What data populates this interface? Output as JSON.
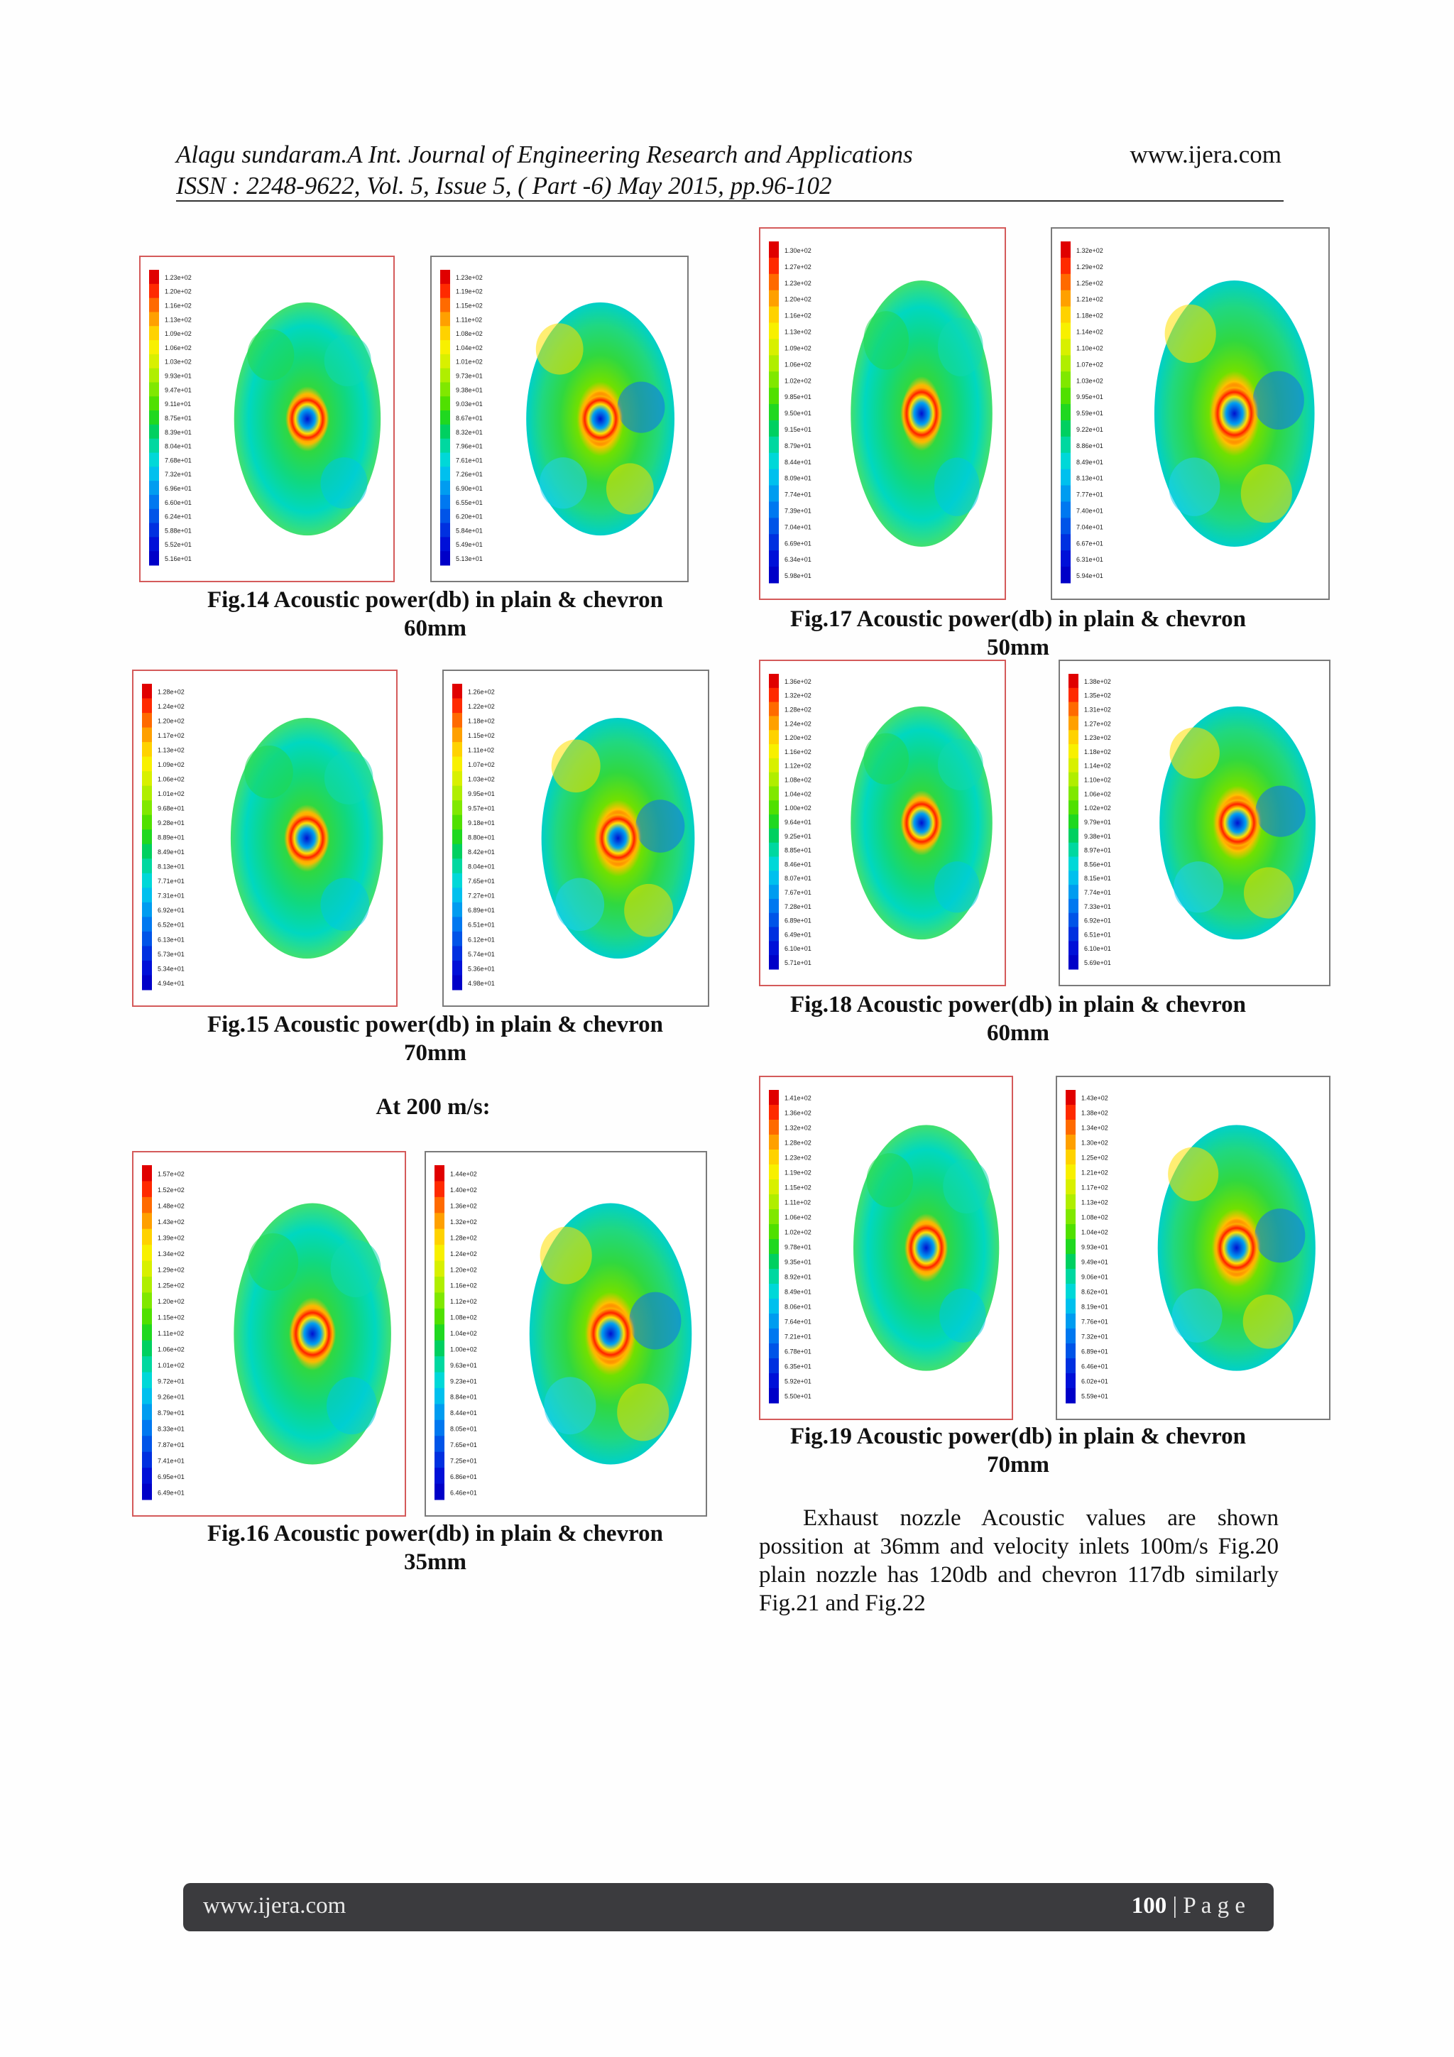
{
  "header": {
    "line1": "Alagu sundaram.A Int. Journal of Engineering Research and Applications",
    "site": "www.ijera.com",
    "line2": "ISSN : 2248-9622, Vol. 5, Issue 5, ( Part -6) May 2015, pp.96-102"
  },
  "figures": {
    "fig14": {
      "caption1": "Fig.14 Acoustic power(db) in plain & chevron",
      "caption2": "60mm",
      "left_scale": [
        "1.23e+02",
        "1.20e+02",
        "1.16e+02",
        "1.13e+02",
        "1.09e+02",
        "1.06e+02",
        "1.03e+02",
        "9.93e+01",
        "9.47e+01",
        "9.11e+01",
        "8.75e+01",
        "8.39e+01",
        "8.04e+01",
        "7.68e+01",
        "7.32e+01",
        "6.96e+01",
        "6.60e+01",
        "6.24e+01",
        "5.88e+01",
        "5.52e+01",
        "5.16e+01"
      ],
      "right_scale": [
        "1.23e+02",
        "1.19e+02",
        "1.15e+02",
        "1.11e+02",
        "1.08e+02",
        "1.04e+02",
        "1.01e+02",
        "9.73e+01",
        "9.38e+01",
        "9.03e+01",
        "8.67e+01",
        "8.32e+01",
        "7.96e+01",
        "7.61e+01",
        "7.26e+01",
        "6.90e+01",
        "6.55e+01",
        "6.20e+01",
        "5.84e+01",
        "5.49e+01",
        "5.13e+01"
      ]
    },
    "fig15": {
      "caption1": "Fig.15 Acoustic power(db) in plain & chevron",
      "caption2": "70mm",
      "left_scale": [
        "1.28e+02",
        "1.24e+02",
        "1.20e+02",
        "1.17e+02",
        "1.13e+02",
        "1.09e+02",
        "1.06e+02",
        "1.01e+02",
        "9.68e+01",
        "9.28e+01",
        "8.89e+01",
        "8.49e+01",
        "8.13e+01",
        "7.71e+01",
        "7.31e+01",
        "6.92e+01",
        "6.52e+01",
        "6.13e+01",
        "5.73e+01",
        "5.34e+01",
        "4.94e+01"
      ],
      "right_scale": [
        "1.26e+02",
        "1.22e+02",
        "1.18e+02",
        "1.15e+02",
        "1.11e+02",
        "1.07e+02",
        "1.03e+02",
        "9.95e+01",
        "9.57e+01",
        "9.18e+01",
        "8.80e+01",
        "8.42e+01",
        "8.04e+01",
        "7.65e+01",
        "7.27e+01",
        "6.89e+01",
        "6.51e+01",
        "6.12e+01",
        "5.74e+01",
        "5.36e+01",
        "4.98e+01"
      ]
    },
    "subhead": "At 200 m/s:",
    "fig16": {
      "caption1": "Fig.16 Acoustic power(db) in plain & chevron",
      "caption2": "35mm",
      "left_scale": [
        "1.57e+02",
        "1.52e+02",
        "1.48e+02",
        "1.43e+02",
        "1.39e+02",
        "1.34e+02",
        "1.29e+02",
        "1.25e+02",
        "1.20e+02",
        "1.15e+02",
        "1.11e+02",
        "1.06e+02",
        "1.01e+02",
        "9.72e+01",
        "9.26e+01",
        "8.79e+01",
        "8.33e+01",
        "7.87e+01",
        "7.41e+01",
        "6.95e+01",
        "6.49e+01"
      ],
      "right_scale": [
        "1.44e+02",
        "1.40e+02",
        "1.36e+02",
        "1.32e+02",
        "1.28e+02",
        "1.24e+02",
        "1.20e+02",
        "1.16e+02",
        "1.12e+02",
        "1.08e+02",
        "1.04e+02",
        "1.00e+02",
        "9.63e+01",
        "9.23e+01",
        "8.84e+01",
        "8.44e+01",
        "8.05e+01",
        "7.65e+01",
        "7.25e+01",
        "6.86e+01",
        "6.46e+01"
      ]
    },
    "fig17": {
      "caption1": "Fig.17 Acoustic power(db) in plain & chevron",
      "caption2": "50mm",
      "left_scale": [
        "1.30e+02",
        "1.27e+02",
        "1.23e+02",
        "1.20e+02",
        "1.16e+02",
        "1.13e+02",
        "1.09e+02",
        "1.06e+02",
        "1.02e+02",
        "9.85e+01",
        "9.50e+01",
        "9.15e+01",
        "8.79e+01",
        "8.44e+01",
        "8.09e+01",
        "7.74e+01",
        "7.39e+01",
        "7.04e+01",
        "6.69e+01",
        "6.34e+01",
        "5.98e+01"
      ],
      "right_scale": [
        "1.32e+02",
        "1.29e+02",
        "1.25e+02",
        "1.21e+02",
        "1.18e+02",
        "1.14e+02",
        "1.10e+02",
        "1.07e+02",
        "1.03e+02",
        "9.95e+01",
        "9.59e+01",
        "9.22e+01",
        "8.86e+01",
        "8.49e+01",
        "8.13e+01",
        "7.77e+01",
        "7.40e+01",
        "7.04e+01",
        "6.67e+01",
        "6.31e+01",
        "5.94e+01"
      ]
    },
    "fig18": {
      "caption1": "Fig.18 Acoustic power(db) in plain & chevron",
      "caption2": "60mm",
      "left_scale": [
        "1.36e+02",
        "1.32e+02",
        "1.28e+02",
        "1.24e+02",
        "1.20e+02",
        "1.16e+02",
        "1.12e+02",
        "1.08e+02",
        "1.04e+02",
        "1.00e+02",
        "9.64e+01",
        "9.25e+01",
        "8.85e+01",
        "8.46e+01",
        "8.07e+01",
        "7.67e+01",
        "7.28e+01",
        "6.89e+01",
        "6.49e+01",
        "6.10e+01",
        "5.71e+01"
      ],
      "right_scale": [
        "1.38e+02",
        "1.35e+02",
        "1.31e+02",
        "1.27e+02",
        "1.23e+02",
        "1.18e+02",
        "1.14e+02",
        "1.10e+02",
        "1.06e+02",
        "1.02e+02",
        "9.79e+01",
        "9.38e+01",
        "8.97e+01",
        "8.56e+01",
        "8.15e+01",
        "7.74e+01",
        "7.33e+01",
        "6.92e+01",
        "6.51e+01",
        "6.10e+01",
        "5.69e+01"
      ]
    },
    "fig19": {
      "caption1": "Fig.19 Acoustic power(db) in plain & chevron",
      "caption2": "70mm",
      "left_scale": [
        "1.41e+02",
        "1.36e+02",
        "1.32e+02",
        "1.28e+02",
        "1.23e+02",
        "1.19e+02",
        "1.15e+02",
        "1.11e+02",
        "1.06e+02",
        "1.02e+02",
        "9.78e+01",
        "9.35e+01",
        "8.92e+01",
        "8.49e+01",
        "8.06e+01",
        "7.64e+01",
        "7.21e+01",
        "6.78e+01",
        "6.35e+01",
        "5.92e+01",
        "5.50e+01"
      ],
      "right_scale": [
        "1.43e+02",
        "1.38e+02",
        "1.34e+02",
        "1.30e+02",
        "1.25e+02",
        "1.21e+02",
        "1.17e+02",
        "1.13e+02",
        "1.08e+02",
        "1.04e+02",
        "9.93e+01",
        "9.49e+01",
        "9.06e+01",
        "8.62e+01",
        "8.19e+01",
        "7.76e+01",
        "7.32e+01",
        "6.89e+01",
        "6.46e+01",
        "6.02e+01",
        "5.59e+01"
      ]
    }
  },
  "paragraph": "Exhaust nozzle Acoustic values are shown possition at 36mm and velocity inlets 100m/s Fig.20 plain nozzle has 120db and chevron 117db similarly Fig.21 and Fig.22",
  "footer": {
    "site": "www.ijera.com",
    "page_number": "100",
    "page_label": "| P a g e"
  },
  "colors": {
    "scale": [
      "#e00000",
      "#ff2a00",
      "#ff6a00",
      "#ffa000",
      "#ffd200",
      "#f8f000",
      "#d8f000",
      "#b0ee00",
      "#80e800",
      "#50e000",
      "#20d820",
      "#00d060",
      "#00d8a0",
      "#00d8d8",
      "#00c0ee",
      "#009cf0",
      "#0078f0",
      "#0054e8",
      "#0030e0",
      "#0010d8",
      "#0000c8"
    ]
  }
}
